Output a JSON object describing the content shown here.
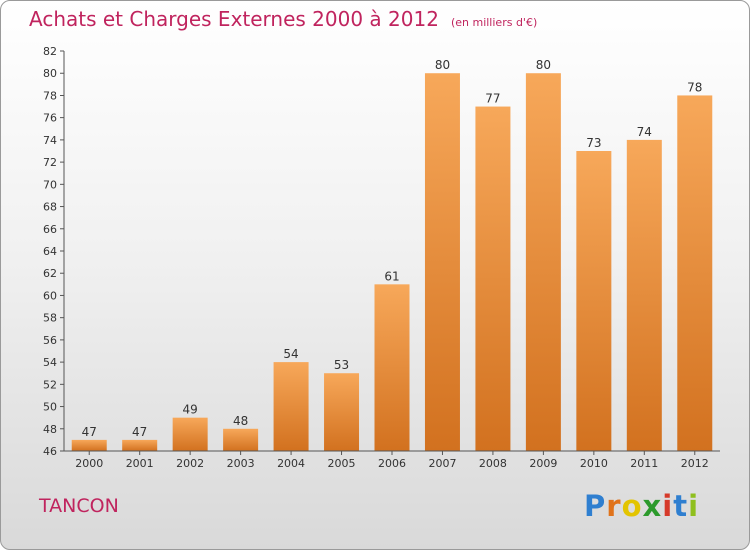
{
  "header": {
    "title": "Achats et Charges Externes 2000 à 2012",
    "subtitle": "(en milliers d'€)"
  },
  "footer": {
    "commune": "TANCON",
    "logo_letters": [
      "P",
      "r",
      "o",
      "x",
      "i",
      "t",
      "i"
    ],
    "logo_colors": [
      "#2f7fd0",
      "#e0731b",
      "#e3c400",
      "#2c9a2c",
      "#d63a2a",
      "#2f7fd0",
      "#8fbf1e"
    ]
  },
  "colors": {
    "bar_top": "#f7a85a",
    "bar_bottom": "#d2711f",
    "text": "#333333"
  },
  "chart_data": {
    "type": "bar",
    "categories": [
      "2000",
      "2001",
      "2002",
      "2003",
      "2004",
      "2005",
      "2006",
      "2007",
      "2008",
      "2009",
      "2010",
      "2011",
      "2012"
    ],
    "values": [
      47,
      47,
      49,
      48,
      54,
      53,
      61,
      80,
      77,
      80,
      73,
      74,
      78
    ],
    "ylim": [
      46,
      82
    ],
    "yticks": [
      46,
      48,
      50,
      52,
      54,
      56,
      58,
      60,
      62,
      64,
      66,
      68,
      70,
      72,
      74,
      76,
      78,
      80,
      82
    ],
    "grid": false,
    "title": "Achats et Charges Externes 2000 à 2012",
    "xlabel": "",
    "ylabel": ""
  }
}
